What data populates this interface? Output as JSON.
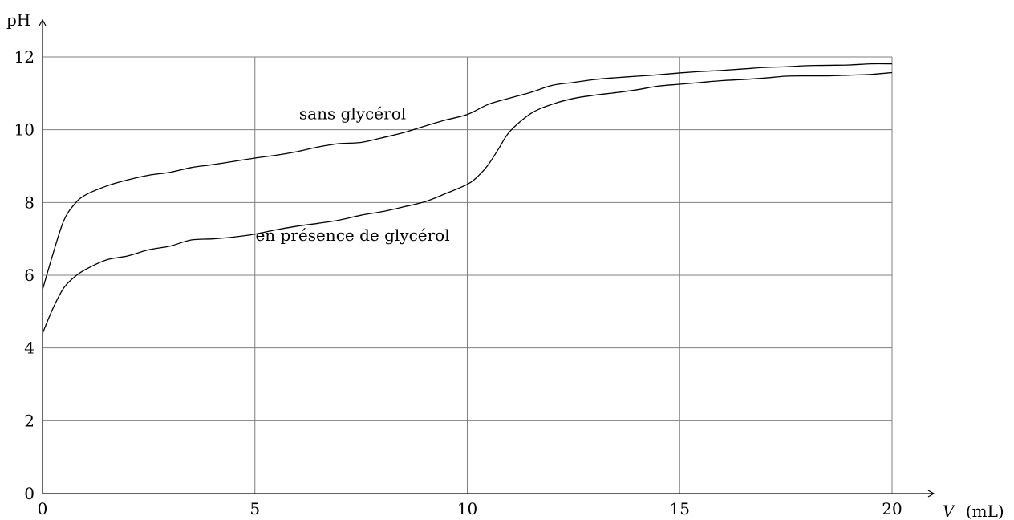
{
  "chart_data": {
    "type": "line",
    "title": "",
    "xlabel": "V",
    "xunit": "(mL)",
    "ylabel": "pH",
    "xlim": [
      0,
      20
    ],
    "ylim": [
      0,
      12
    ],
    "xticks": [
      0,
      5,
      10,
      15,
      20
    ],
    "yticks": [
      0,
      2,
      4,
      6,
      8,
      10,
      12
    ],
    "xtick_labels": [
      "0",
      "5",
      "10",
      "15",
      "20"
    ],
    "ytick_labels": [
      "0",
      "2",
      "4",
      "6",
      "8",
      "10",
      "12"
    ],
    "grid": true,
    "series": [
      {
        "name": "sans glycérol",
        "x": [
          0,
          0.25,
          0.5,
          0.75,
          1,
          1.5,
          2,
          2.5,
          3,
          3.5,
          4,
          4.5,
          5,
          5.5,
          6,
          6.5,
          7,
          7.5,
          8,
          8.5,
          9,
          9.5,
          10,
          10.5,
          11,
          11.5,
          12,
          12.5,
          13,
          13.5,
          14,
          14.5,
          15,
          15.5,
          16,
          16.5,
          17,
          17.5,
          18,
          18.5,
          19,
          19.5,
          20
        ],
        "values": [
          5.6,
          6.6,
          7.5,
          7.95,
          8.2,
          8.45,
          8.62,
          8.75,
          8.83,
          8.96,
          9.04,
          9.13,
          9.22,
          9.3,
          9.4,
          9.53,
          9.62,
          9.65,
          9.78,
          9.92,
          10.1,
          10.27,
          10.42,
          10.7,
          10.87,
          11.03,
          11.22,
          11.3,
          11.38,
          11.43,
          11.47,
          11.51,
          11.56,
          11.6,
          11.63,
          11.67,
          11.71,
          11.73,
          11.76,
          11.77,
          11.78,
          11.81,
          11.81
        ]
      },
      {
        "name": "en présence de glycérol",
        "x": [
          0,
          0.25,
          0.5,
          0.75,
          1,
          1.5,
          2,
          2.5,
          3,
          3.5,
          4,
          4.5,
          5,
          5.5,
          6,
          6.5,
          7,
          7.5,
          8,
          8.5,
          9,
          9.5,
          10,
          10.25,
          10.5,
          10.75,
          11,
          11.5,
          12,
          12.5,
          13,
          13.5,
          14,
          14.5,
          15,
          15.5,
          16,
          16.5,
          17,
          17.5,
          18,
          18.5,
          19,
          19.5,
          20
        ],
        "values": [
          4.4,
          5.1,
          5.65,
          5.95,
          6.15,
          6.42,
          6.53,
          6.7,
          6.8,
          6.97,
          7.0,
          7.05,
          7.13,
          7.25,
          7.35,
          7.43,
          7.52,
          7.65,
          7.75,
          7.88,
          8.02,
          8.25,
          8.5,
          8.72,
          9.05,
          9.5,
          9.95,
          10.45,
          10.7,
          10.86,
          10.95,
          11.02,
          11.1,
          11.2,
          11.25,
          11.3,
          11.35,
          11.38,
          11.42,
          11.47,
          11.48,
          11.48,
          11.5,
          11.52,
          11.57
        ]
      }
    ],
    "annotations": [
      {
        "text": "sans glycérol",
        "x": 7.3,
        "y": 10.45
      },
      {
        "text": "en présence de glycérol",
        "x": 7.3,
        "y": 7.1
      }
    ]
  }
}
